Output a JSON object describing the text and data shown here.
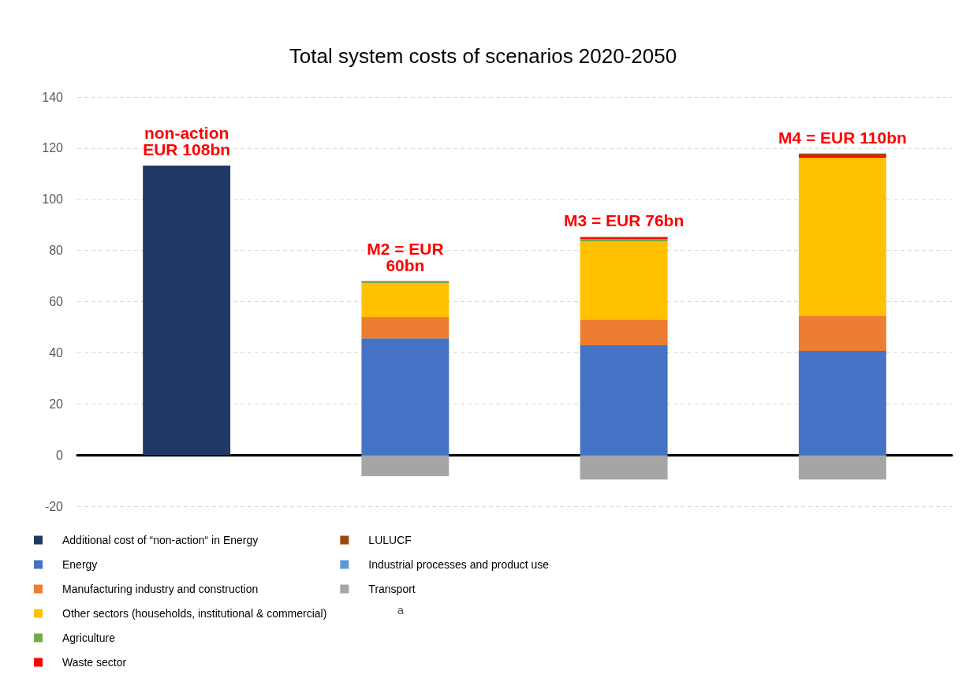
{
  "chart_data": {
    "type": "bar",
    "title": "Total system costs of scenarios 2020-2050",
    "categories": [
      null,
      null,
      null,
      null
    ],
    "stacked": true,
    "series": [
      {
        "name": "Additional cost of “non-action“ in Energy",
        "color": "#203864",
        "values": [
          113.2,
          null,
          null,
          null
        ]
      },
      {
        "name": "Energy",
        "color": "#4472c4",
        "values": [
          null,
          45.6,
          42.9,
          40.7
        ]
      },
      {
        "name": "Manufacturing industry and construction",
        "color": "#ed7d31",
        "values": [
          null,
          8.4,
          10.1,
          13.6
        ]
      },
      {
        "name": "Other sectors (households, institutional & commercial)",
        "color": "#ffc000",
        "values": [
          null,
          13.2,
          30.6,
          62
        ]
      },
      {
        "name": "Agriculture",
        "color": "#70ad47",
        "values": [
          null,
          0.5,
          0.8,
          null
        ]
      },
      {
        "name": "Waste sector",
        "color": "#ff0000",
        "values": [
          null,
          null,
          0.4,
          0.6
        ]
      },
      {
        "name": "LULUCF",
        "color": "#9e480e",
        "values": [
          null,
          0.3,
          0.5,
          1
        ]
      },
      {
        "name": "Industrial processes and product use",
        "color": "#5b9bd5",
        "values": [
          null,
          null,
          null,
          null
        ]
      },
      {
        "name": "Transport",
        "color": "#a5a5a5",
        "values": [
          null,
          -8.3,
          -9.6,
          -9.6
        ]
      }
    ],
    "ylim": [
      -20,
      140
    ],
    "yticks": [
      -20,
      0,
      20,
      40,
      60,
      80,
      100,
      120,
      140
    ],
    "grid": "y",
    "legend": "bottom",
    "annotations": [
      "non-action\nEUR 108bn",
      "M2 = EUR\n60bn",
      "M3 = EUR 76bn",
      "M4 = EUR 110bn",
      "a"
    ]
  }
}
